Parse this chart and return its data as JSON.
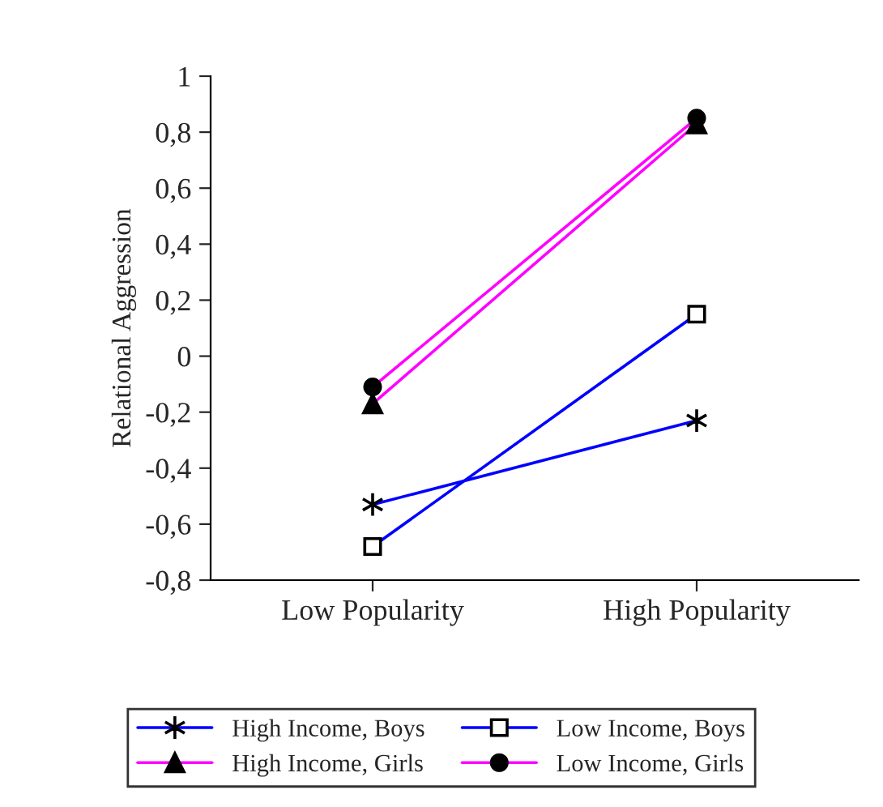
{
  "chart_data": {
    "type": "line",
    "ylabel": "Relational Aggression",
    "categories": [
      "Low Popularity",
      "High Popularity"
    ],
    "series": [
      {
        "name": "High Income, Boys",
        "color": "#0000ff",
        "values": [
          -0.53,
          -0.23
        ],
        "marker": "cross"
      },
      {
        "name": "High Income, Girls",
        "color": "#ff00ff",
        "values": [
          -0.17,
          0.83
        ],
        "marker": "triangle"
      },
      {
        "name": "Low Income, Boys",
        "color": "#0000ff",
        "values": [
          -0.68,
          0.15
        ],
        "marker": "square"
      },
      {
        "name": "Low Income, Girls",
        "color": "#ff00ff",
        "values": [
          -0.11,
          0.85
        ],
        "marker": "circle"
      }
    ],
    "ylim": [
      -0.8,
      1
    ],
    "yticks": [
      {
        "value": -0.8,
        "label": "-0,8"
      },
      {
        "value": -0.6,
        "label": "-0,6"
      },
      {
        "value": -0.4,
        "label": "-0,4"
      },
      {
        "value": -0.2,
        "label": "-0,2"
      },
      0,
      {
        "value": 0.2,
        "label": "0,2"
      },
      {
        "value": 0.4,
        "label": "0,4"
      },
      {
        "value": 0.6,
        "label": "0,6"
      },
      {
        "value": 0.8,
        "label": "0,8"
      },
      1
    ],
    "grid": false,
    "legend": "bottom",
    "line_style": "solid"
  }
}
